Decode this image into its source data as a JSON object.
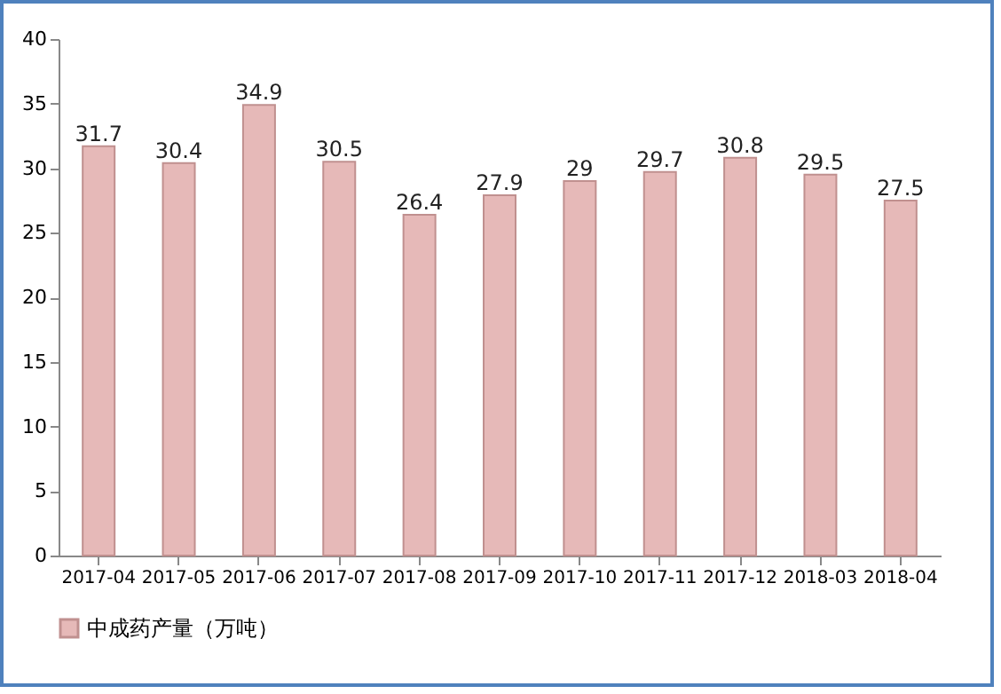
{
  "chart_data": {
    "type": "bar",
    "categories": [
      "2017-04",
      "2017-05",
      "2017-06",
      "2017-07",
      "2017-08",
      "2017-09",
      "2017-10",
      "2017-11",
      "2017-12",
      "2018-03",
      "2018-04"
    ],
    "series": [
      {
        "name": "中成药产量（万吨）",
        "color": "#e6b9b8",
        "values": [
          31.7,
          30.4,
          34.9,
          30.5,
          26.4,
          27.9,
          29,
          29.7,
          30.8,
          29.5,
          27.5
        ]
      }
    ],
    "ylim": [
      0,
      40
    ],
    "yticks": [
      0,
      5,
      10,
      15,
      20,
      25,
      30,
      35,
      40
    ],
    "grid": false,
    "legend": "bottom",
    "data_labels": true
  }
}
